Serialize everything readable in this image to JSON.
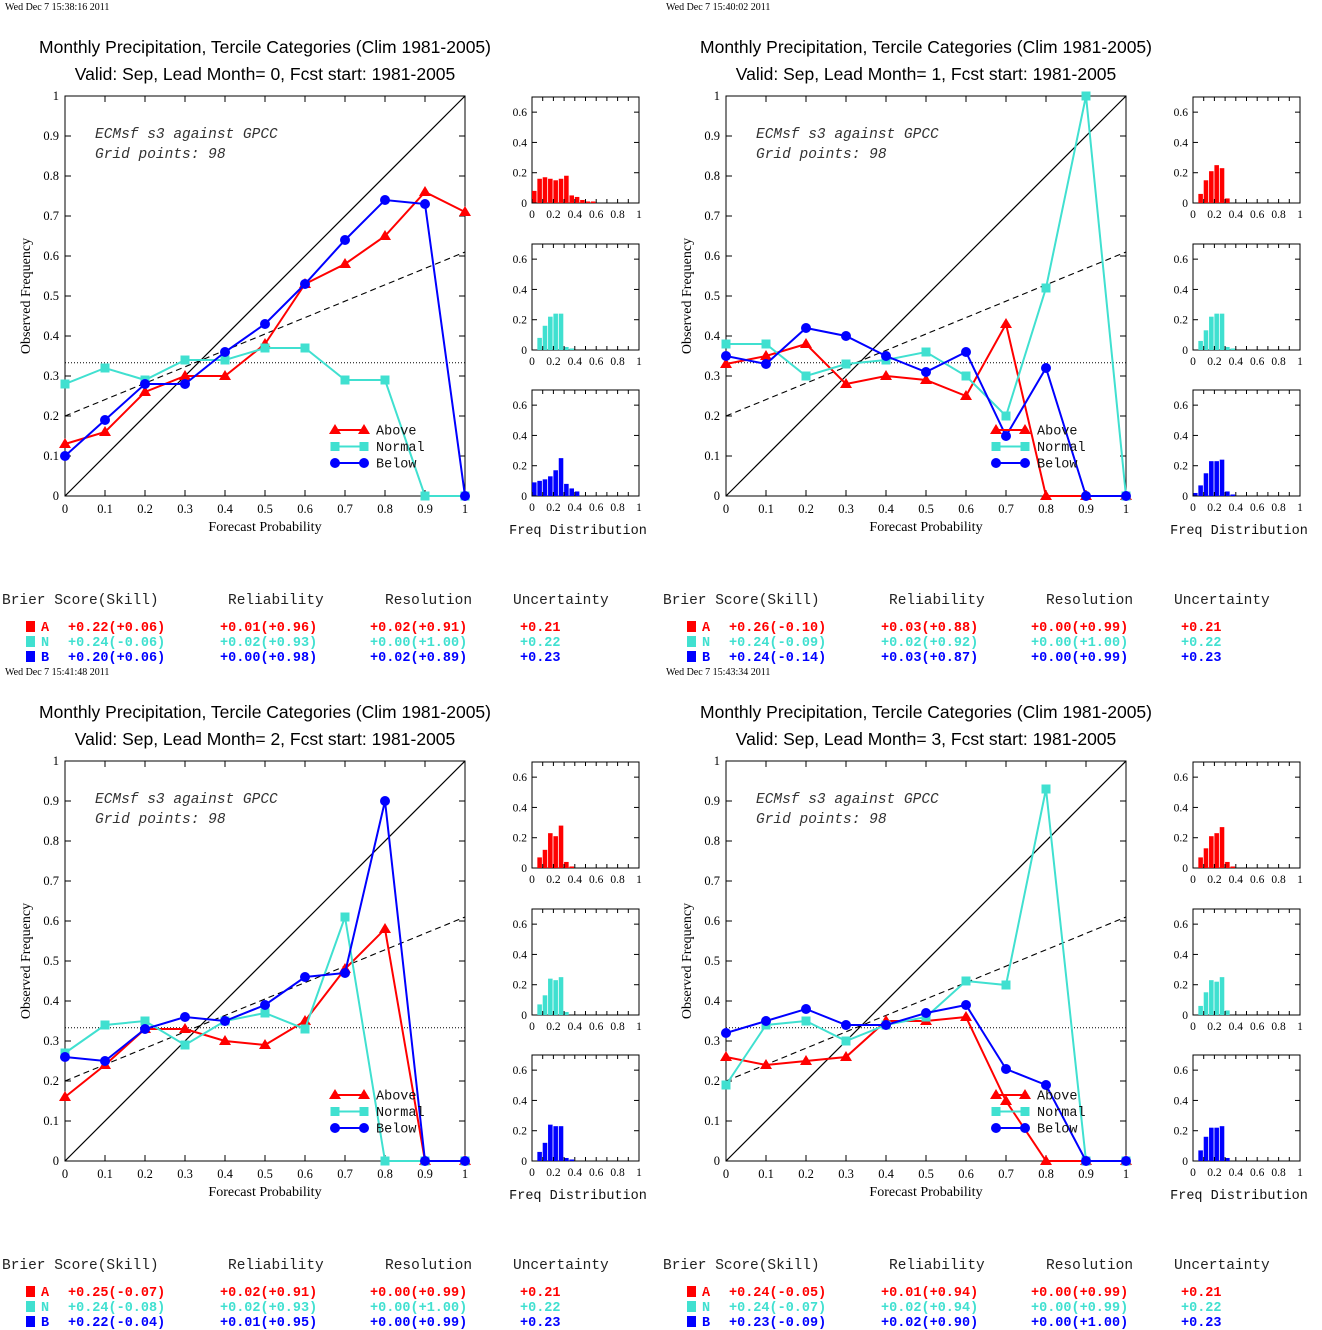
{
  "colors": {
    "above": "#ff0000",
    "normal": "#40e0d0",
    "below": "#0000ff",
    "axis": "#000000"
  },
  "labels": {
    "ylabel": "Observed Frequency",
    "xlabel": "Forecast Probability",
    "freq_label": "Freq Distribution",
    "legend": [
      "Above",
      "Normal",
      "Below"
    ],
    "annotation_line1": "ECMsf s3 against GPCC",
    "annotation_line2": "Grid points:    98",
    "score_headers": [
      "Brier Score(Skill)",
      "Reliability",
      "Resolution",
      "Uncertainty"
    ]
  },
  "panels": [
    {
      "timestamp": "Wed Dec  7 15:38:16 2011",
      "title_line1": "Monthly Precipitation, Tercile Categories (Clim 1981-2005)",
      "title_line2": "Valid: Sep, Lead Month= 0, Fcst start: 1981-2005",
      "scores": [
        {
          "letter": "A",
          "brier": "+0.22(+0.06)",
          "reliability": "+0.01(+0.96)",
          "resolution": "+0.02(+0.91)",
          "uncertainty": "+0.21"
        },
        {
          "letter": "N",
          "brier": "+0.24(-0.06)",
          "reliability": "+0.02(+0.93)",
          "resolution": "+0.00(+1.00)",
          "uncertainty": "+0.22"
        },
        {
          "letter": "B",
          "brier": "+0.20(+0.06)",
          "reliability": "+0.00(+0.98)",
          "resolution": "+0.02(+0.89)",
          "uncertainty": "+0.23"
        }
      ]
    },
    {
      "timestamp": "Wed Dec  7 15:40:02 2011",
      "title_line1": "Monthly Precipitation, Tercile Categories (Clim 1981-2005)",
      "title_line2": "Valid: Sep, Lead Month= 1, Fcst start: 1981-2005",
      "scores": [
        {
          "letter": "A",
          "brier": "+0.26(-0.10)",
          "reliability": "+0.03(+0.88)",
          "resolution": "+0.00(+0.99)",
          "uncertainty": "+0.21"
        },
        {
          "letter": "N",
          "brier": "+0.24(-0.09)",
          "reliability": "+0.02(+0.92)",
          "resolution": "+0.00(+1.00)",
          "uncertainty": "+0.22"
        },
        {
          "letter": "B",
          "brier": "+0.24(-0.14)",
          "reliability": "+0.03(+0.87)",
          "resolution": "+0.00(+0.99)",
          "uncertainty": "+0.23"
        }
      ]
    },
    {
      "timestamp": "Wed Dec  7 15:41:48 2011",
      "title_line1": "Monthly Precipitation, Tercile Categories (Clim 1981-2005)",
      "title_line2": "Valid: Sep, Lead Month= 2, Fcst start: 1981-2005",
      "scores": [
        {
          "letter": "A",
          "brier": "+0.25(-0.07)",
          "reliability": "+0.02(+0.91)",
          "resolution": "+0.00(+0.99)",
          "uncertainty": "+0.21"
        },
        {
          "letter": "N",
          "brier": "+0.24(-0.08)",
          "reliability": "+0.02(+0.93)",
          "resolution": "+0.00(+1.00)",
          "uncertainty": "+0.22"
        },
        {
          "letter": "B",
          "brier": "+0.22(-0.04)",
          "reliability": "+0.01(+0.95)",
          "resolution": "+0.00(+0.99)",
          "uncertainty": "+0.23"
        }
      ]
    },
    {
      "timestamp": "Wed Dec  7 15:43:34 2011",
      "title_line1": "Monthly Precipitation, Tercile Categories (Clim 1981-2005)",
      "title_line2": "Valid: Sep, Lead Month= 3, Fcst start: 1981-2005",
      "scores": [
        {
          "letter": "A",
          "brier": "+0.24(-0.05)",
          "reliability": "+0.01(+0.94)",
          "resolution": "+0.00(+0.99)",
          "uncertainty": "+0.21"
        },
        {
          "letter": "N",
          "brier": "+0.24(-0.07)",
          "reliability": "+0.02(+0.94)",
          "resolution": "+0.00(+0.99)",
          "uncertainty": "+0.22"
        },
        {
          "letter": "B",
          "brier": "+0.23(-0.09)",
          "reliability": "+0.02(+0.90)",
          "resolution": "+0.00(+1.00)",
          "uncertainty": "+0.23"
        }
      ]
    }
  ],
  "chart_data": [
    {
      "type": "line",
      "xlabel": "Forecast Probability",
      "ylabel": "Observed Frequency",
      "xlim": [
        0,
        1
      ],
      "ylim": [
        0,
        1
      ],
      "x": [
        0,
        0.1,
        0.2,
        0.3,
        0.4,
        0.5,
        0.6,
        0.7,
        0.8,
        0.9,
        1
      ],
      "reference_lines": {
        "diagonal": [
          [
            0,
            0
          ],
          [
            1,
            1
          ]
        ],
        "skill_dashed": [
          [
            0,
            0.2
          ],
          [
            1,
            0.61
          ]
        ],
        "climatology_dotted": 0.333
      },
      "series": [
        {
          "name": "Above",
          "values": [
            0.13,
            0.16,
            0.26,
            0.3,
            0.3,
            0.38,
            0.53,
            0.58,
            0.65,
            0.76,
            0.71
          ]
        },
        {
          "name": "Normal",
          "values": [
            0.28,
            0.32,
            0.29,
            0.34,
            0.34,
            0.37,
            0.37,
            0.29,
            0.29,
            0,
            0
          ]
        },
        {
          "name": "Below",
          "values": [
            0.1,
            0.19,
            0.28,
            0.28,
            0.36,
            0.43,
            0.53,
            0.64,
            0.74,
            0.73,
            0
          ]
        }
      ],
      "freq_distribution": {
        "xlim": [
          0,
          1
        ],
        "ylim": [
          0,
          0.7
        ],
        "bin_width": 0.05,
        "above": [
          0.08,
          0.16,
          0.17,
          0.16,
          0.15,
          0.16,
          0.18,
          0.05,
          0.04,
          0.02,
          0.01,
          0.01
        ],
        "normal": [
          0,
          0.08,
          0.16,
          0.22,
          0.24,
          0.24,
          0.02,
          0.01,
          0,
          0,
          0,
          0
        ],
        "below": [
          0.09,
          0.1,
          0.11,
          0.13,
          0.17,
          0.25,
          0.08,
          0.05,
          0.03,
          0,
          0,
          0
        ]
      }
    },
    {
      "type": "line",
      "xlabel": "Forecast Probability",
      "ylabel": "Observed Frequency",
      "xlim": [
        0,
        1
      ],
      "ylim": [
        0,
        1
      ],
      "x": [
        0,
        0.1,
        0.2,
        0.3,
        0.4,
        0.5,
        0.6,
        0.7,
        0.8,
        0.9,
        1
      ],
      "reference_lines": {
        "diagonal": [
          [
            0,
            0
          ],
          [
            1,
            1
          ]
        ],
        "skill_dashed": [
          [
            0,
            0.2
          ],
          [
            1,
            0.61
          ]
        ],
        "climatology_dotted": 0.333
      },
      "series": [
        {
          "name": "Above",
          "values": [
            0.33,
            0.35,
            0.38,
            0.28,
            0.3,
            0.29,
            0.25,
            0.43,
            0,
            0,
            0
          ]
        },
        {
          "name": "Normal",
          "values": [
            0.38,
            0.38,
            0.3,
            0.33,
            0.34,
            0.36,
            0.3,
            0.2,
            0.52,
            1.0,
            0
          ]
        },
        {
          "name": "Below",
          "values": [
            0.35,
            0.33,
            0.42,
            0.4,
            0.35,
            0.31,
            0.36,
            0.15,
            0.32,
            0,
            0
          ]
        }
      ],
      "freq_distribution": {
        "xlim": [
          0,
          1
        ],
        "ylim": [
          0,
          0.7
        ],
        "bin_width": 0.05,
        "above": [
          0,
          0.06,
          0.15,
          0.21,
          0.25,
          0.23,
          0.03,
          0,
          0,
          0,
          0,
          0
        ],
        "normal": [
          0,
          0.06,
          0.13,
          0.22,
          0.24,
          0.24,
          0.02,
          0.01,
          0,
          0,
          0,
          0
        ],
        "below": [
          0.02,
          0.07,
          0.15,
          0.23,
          0.23,
          0.24,
          0.03,
          0.01,
          0,
          0,
          0,
          0
        ]
      }
    },
    {
      "type": "line",
      "xlabel": "Forecast Probability",
      "ylabel": "Observed Frequency",
      "xlim": [
        0,
        1
      ],
      "ylim": [
        0,
        1
      ],
      "x": [
        0,
        0.1,
        0.2,
        0.3,
        0.4,
        0.5,
        0.6,
        0.7,
        0.8,
        0.9,
        1
      ],
      "reference_lines": {
        "diagonal": [
          [
            0,
            0
          ],
          [
            1,
            1
          ]
        ],
        "skill_dashed": [
          [
            0,
            0.2
          ],
          [
            1,
            0.61
          ]
        ],
        "climatology_dotted": 0.333
      },
      "series": [
        {
          "name": "Above",
          "values": [
            0.16,
            0.24,
            0.33,
            0.33,
            0.3,
            0.29,
            0.35,
            0.48,
            0.58,
            0,
            0
          ]
        },
        {
          "name": "Normal",
          "values": [
            0.27,
            0.34,
            0.35,
            0.29,
            0.35,
            0.37,
            0.33,
            0.61,
            0,
            0,
            0
          ]
        },
        {
          "name": "Below",
          "values": [
            0.26,
            0.25,
            0.33,
            0.36,
            0.35,
            0.39,
            0.46,
            0.47,
            0.9,
            0,
            0
          ]
        }
      ],
      "freq_distribution": {
        "xlim": [
          0,
          1
        ],
        "ylim": [
          0,
          0.7
        ],
        "bin_width": 0.05,
        "above": [
          0,
          0.07,
          0.12,
          0.23,
          0.21,
          0.28,
          0.04,
          0.01,
          0,
          0,
          0,
          0
        ],
        "normal": [
          0,
          0.07,
          0.13,
          0.24,
          0.23,
          0.25,
          0.02,
          0,
          0,
          0,
          0,
          0
        ],
        "below": [
          0,
          0.06,
          0.12,
          0.24,
          0.23,
          0.23,
          0.02,
          0.01,
          0,
          0,
          0,
          0
        ]
      }
    },
    {
      "type": "line",
      "xlabel": "Forecast Probability",
      "ylabel": "Observed Frequency",
      "xlim": [
        0,
        1
      ],
      "ylim": [
        0,
        1
      ],
      "x": [
        0,
        0.1,
        0.2,
        0.3,
        0.4,
        0.5,
        0.6,
        0.7,
        0.8,
        0.9,
        1
      ],
      "reference_lines": {
        "diagonal": [
          [
            0,
            0
          ],
          [
            1,
            1
          ]
        ],
        "skill_dashed": [
          [
            0,
            0.2
          ],
          [
            1,
            0.61
          ]
        ],
        "climatology_dotted": 0.333
      },
      "series": [
        {
          "name": "Above",
          "values": [
            0.26,
            0.24,
            0.25,
            0.26,
            0.35,
            0.35,
            0.36,
            0.15,
            0,
            0,
            0
          ]
        },
        {
          "name": "Normal",
          "values": [
            0.19,
            0.34,
            0.35,
            0.3,
            0.34,
            0.36,
            0.45,
            0.44,
            0.93,
            0,
            0
          ]
        },
        {
          "name": "Below",
          "values": [
            0.32,
            0.35,
            0.38,
            0.34,
            0.34,
            0.37,
            0.39,
            0.23,
            0.19,
            0,
            0
          ]
        }
      ],
      "freq_distribution": {
        "xlim": [
          0,
          1
        ],
        "ylim": [
          0,
          0.7
        ],
        "bin_width": 0.05,
        "above": [
          0,
          0.07,
          0.13,
          0.21,
          0.23,
          0.27,
          0.04,
          0.01,
          0,
          0,
          0,
          0
        ],
        "normal": [
          0,
          0.06,
          0.15,
          0.23,
          0.22,
          0.25,
          0.03,
          0,
          0,
          0,
          0,
          0
        ],
        "below": [
          0,
          0.07,
          0.16,
          0.22,
          0.22,
          0.23,
          0.02,
          0,
          0,
          0,
          0,
          0
        ]
      }
    }
  ]
}
